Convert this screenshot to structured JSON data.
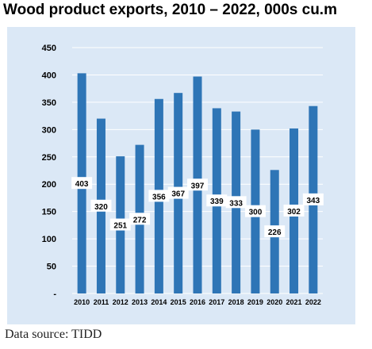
{
  "title": "Wood product exports, 2010 – 2022, 000s cu.m",
  "source": "Data source: TIDD",
  "colors": {
    "panel_background": "#dbe8f6",
    "bar": "#2e75b6",
    "gridline": "#ffffff",
    "label_background": "#ffffff",
    "text": "#000000"
  },
  "chart_data": {
    "type": "bar",
    "categories": [
      "2010",
      "2011",
      "2012",
      "2013",
      "2014",
      "2015",
      "2016",
      "2017",
      "2018",
      "2019",
      "2020",
      "2021",
      "2022"
    ],
    "values": [
      403,
      320,
      251,
      272,
      356,
      367,
      397,
      339,
      333,
      300,
      226,
      302,
      343
    ],
    "data_labels": [
      "403",
      "320",
      "251",
      "272",
      "356",
      "367",
      "397",
      "339",
      "333",
      "300",
      "226",
      "302",
      "343"
    ],
    "ylim": [
      0,
      450
    ],
    "yticks": [
      0,
      50,
      100,
      150,
      200,
      250,
      300,
      350,
      400,
      450
    ],
    "ytick_labels": [
      "-",
      "50",
      "100",
      "150",
      "200",
      "250",
      "300",
      "350",
      "400",
      "450"
    ],
    "grid": true,
    "legend": "none",
    "xlabel": "",
    "ylabel": ""
  }
}
